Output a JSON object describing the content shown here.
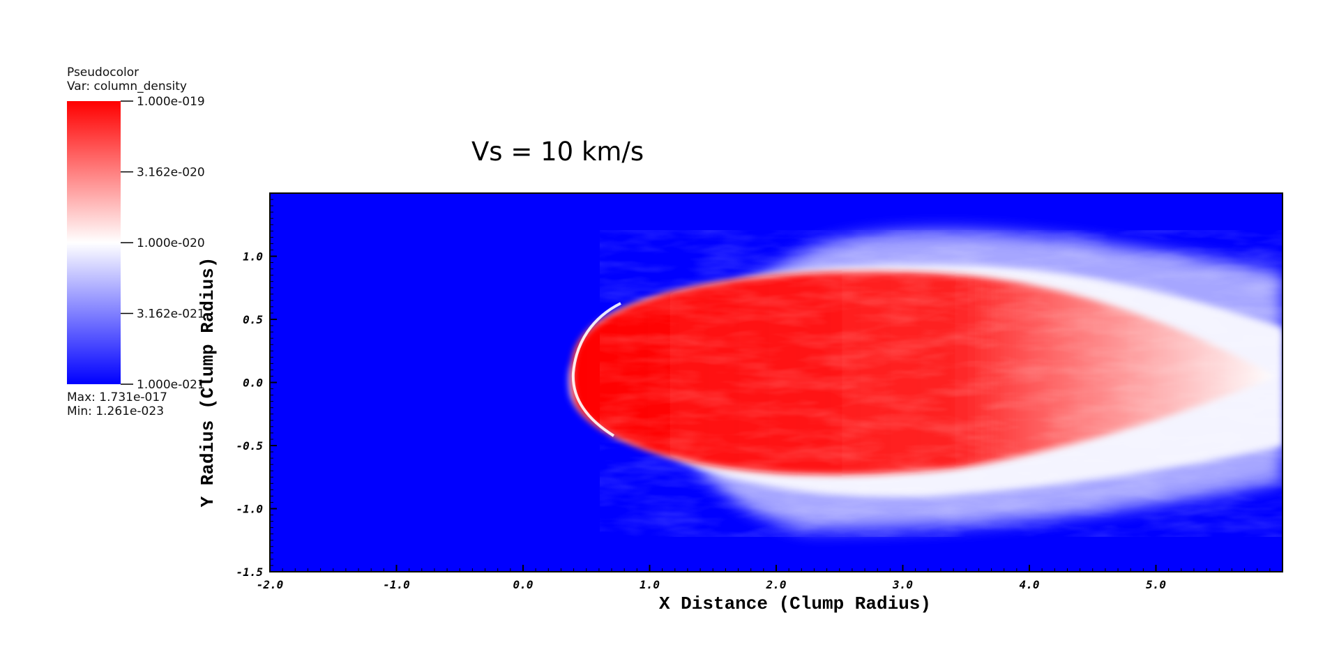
{
  "chart_data": {
    "type": "heatmap",
    "title": "Vs = 10 km/s",
    "xlabel": "X Distance (Clump Radius)",
    "ylabel": "Y Radius (Clump Radius)",
    "xlim": [
      -2.0,
      6.0
    ],
    "ylim": [
      -1.5,
      1.5
    ],
    "x_ticks": [
      "-2.0",
      "-1.0",
      "0.0",
      "1.0",
      "2.0",
      "3.0",
      "4.0",
      "5.0"
    ],
    "y_ticks": [
      "-1.5",
      "-1.0",
      "-0.5",
      "0.0",
      "0.5",
      "1.0"
    ],
    "x_tick_values": [
      -2,
      -1,
      0,
      1,
      2,
      3,
      4,
      5
    ],
    "y_tick_values": [
      -1.5,
      -1.0,
      -0.5,
      0.0,
      0.5,
      1.0
    ],
    "grid": false,
    "legend": {
      "plot_type": "Pseudocolor",
      "variable": "Var: column_density",
      "scale": "log",
      "colors": [
        "#0000ff",
        "#ffffff",
        "#ff0000"
      ],
      "ticks": [
        "1.000e-019",
        "3.162e-020",
        "1.000e-020",
        "3.162e-021",
        "1.000e-021"
      ],
      "max": "Max:  1.731e-017",
      "min": "Min:  1.261e-023"
    },
    "colors": {
      "background": "#0000ff",
      "mid": "#ffffff",
      "high": "#ff0000"
    }
  }
}
